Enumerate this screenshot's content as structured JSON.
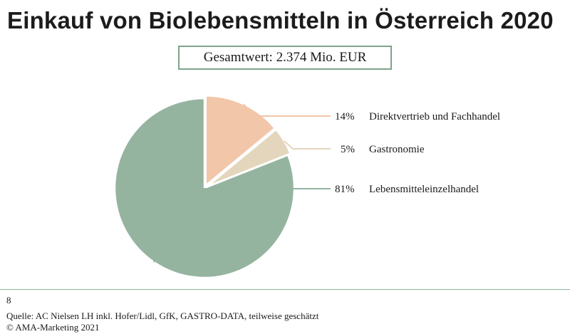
{
  "title": "Einkauf von Biolebensmitteln in Österreich 2020",
  "total": "Gesamtwert: 2.374 Mio. EUR",
  "chart_data": {
    "type": "pie",
    "slices": [
      {
        "label": "Direktvertrieb und Fachhandel",
        "value": 14,
        "value_label": "14%",
        "color": "#f2c6a9"
      },
      {
        "label": "Gastronomie",
        "value": 5,
        "value_label": "5%",
        "color": "#e3d6bc"
      },
      {
        "label": "Lebensmitteleinzelhandel",
        "value": 81,
        "value_label": "81%",
        "color": "#95b4a0"
      }
    ],
    "exploded": [
      "Direktvertrieb und Fachhandel",
      "Gastronomie"
    ],
    "legend_placement": "right, with leader lines"
  },
  "footer": {
    "page_number": "8",
    "source": "Quelle: AC Nielsen LH inkl. Hofer/Lidl, GfK, GASTRO-DATA, teilweise geschätzt",
    "copyright": "© AMA-Marketing 2021"
  }
}
